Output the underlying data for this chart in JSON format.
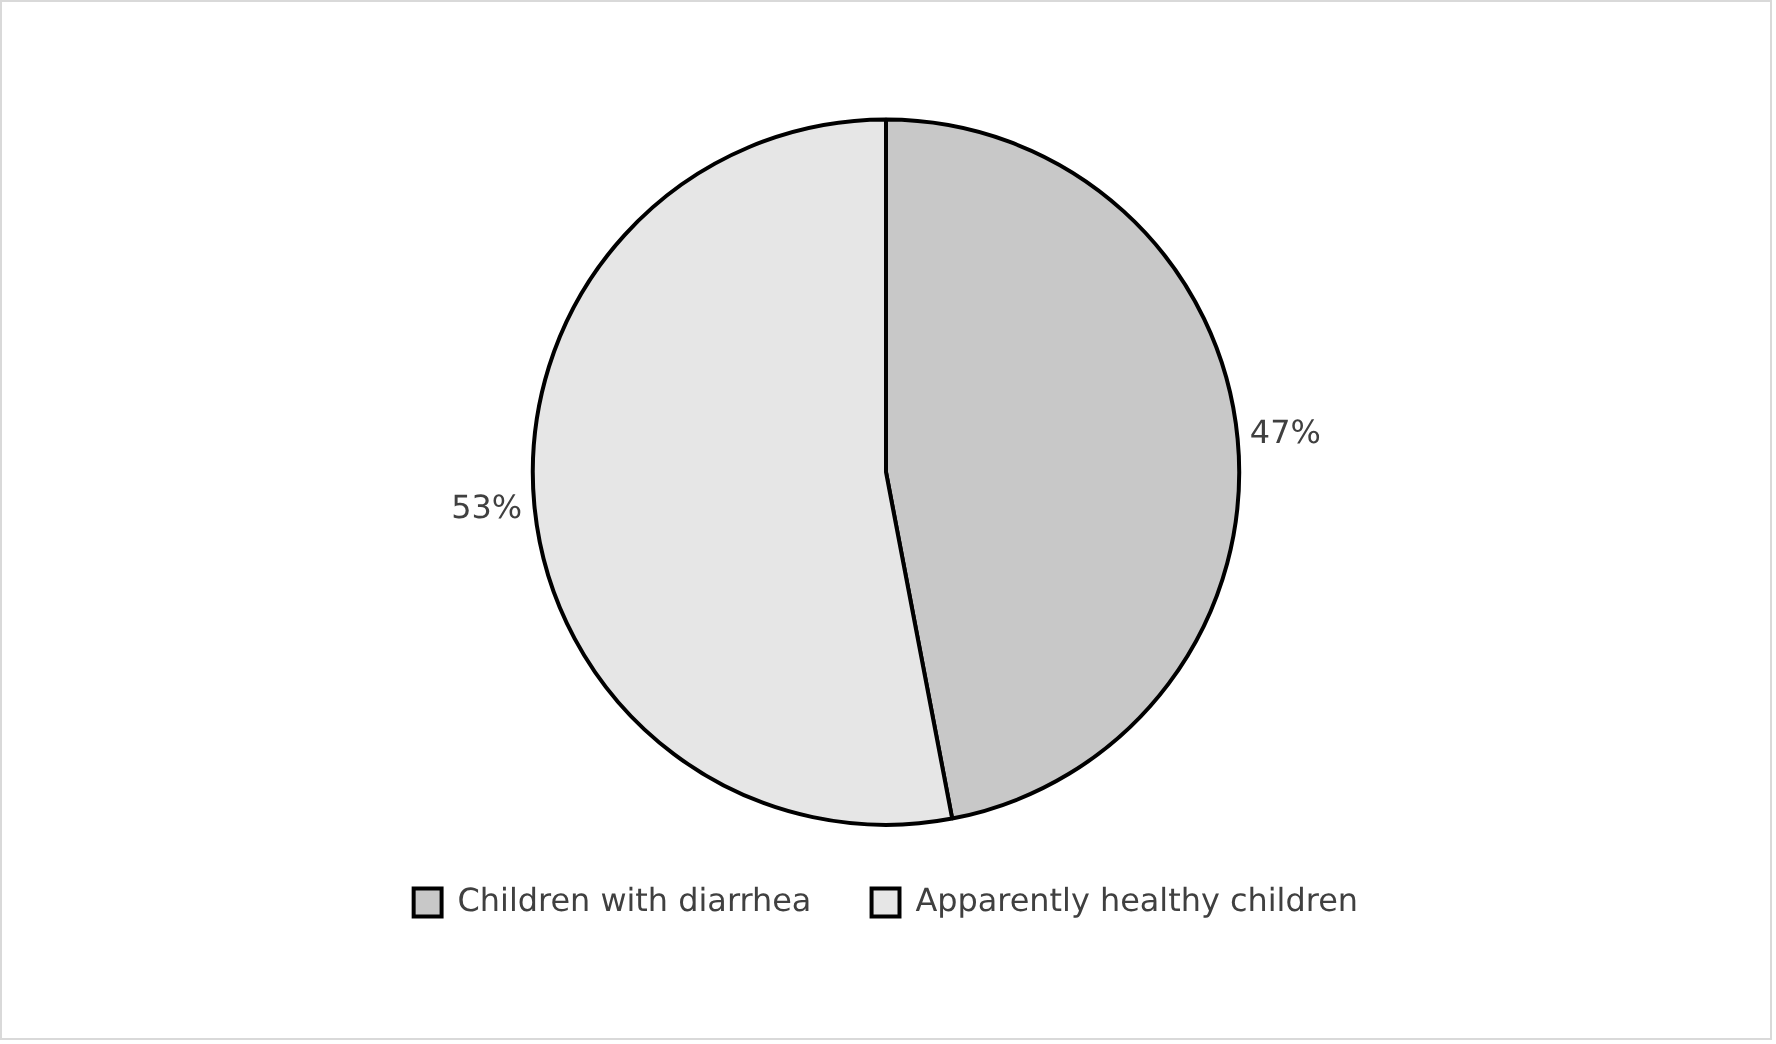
{
  "chart_data": {
    "type": "pie",
    "categories": [
      "Children with diarrhea",
      "Apparently healthy children"
    ],
    "values": [
      47,
      53
    ],
    "colors": [
      "#c8c8c8",
      "#e6e6e6"
    ],
    "value_labels": [
      "47%",
      "53%"
    ],
    "legend": "bottom"
  }
}
